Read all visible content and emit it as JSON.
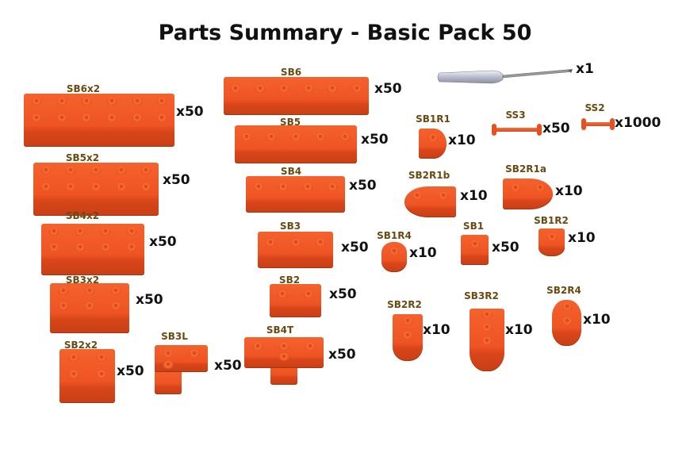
{
  "title": "Parts Summary - Basic Pack 50",
  "colors": {
    "brick": "#ef5424",
    "label": "#6b4a12",
    "text": "#111111"
  },
  "parts": [
    {
      "name": "SB6x2",
      "qty": "x50"
    },
    {
      "name": "SB5x2",
      "qty": "x50"
    },
    {
      "name": "SB4x2",
      "qty": "x50"
    },
    {
      "name": "SB3x2",
      "qty": "x50"
    },
    {
      "name": "SB2x2",
      "qty": "x50"
    },
    {
      "name": "SB3L",
      "qty": "x50"
    },
    {
      "name": "SB6",
      "qty": "x50"
    },
    {
      "name": "SB5",
      "qty": "x50"
    },
    {
      "name": "SB4",
      "qty": "x50"
    },
    {
      "name": "SB3",
      "qty": "x50"
    },
    {
      "name": "SB2",
      "qty": "x50"
    },
    {
      "name": "SB4T",
      "qty": "x50"
    },
    {
      "name": "SB1R1",
      "qty": "x10"
    },
    {
      "name": "SS3",
      "qty": "x50"
    },
    {
      "name": "SS2",
      "qty": "x1000"
    },
    {
      "name": "SB2R1b",
      "qty": "x10"
    },
    {
      "name": "SB2R1a",
      "qty": "x10"
    },
    {
      "name": "SB1R4",
      "qty": "x10"
    },
    {
      "name": "SB1",
      "qty": "x50"
    },
    {
      "name": "SB1R2",
      "qty": "x10"
    },
    {
      "name": "SB2R2",
      "qty": "x10"
    },
    {
      "name": "SB3R2",
      "qty": "x10"
    },
    {
      "name": "SB2R4",
      "qty": "x10"
    }
  ],
  "screwdriver": {
    "icon": "screwdriver-icon",
    "qty": "x1"
  }
}
